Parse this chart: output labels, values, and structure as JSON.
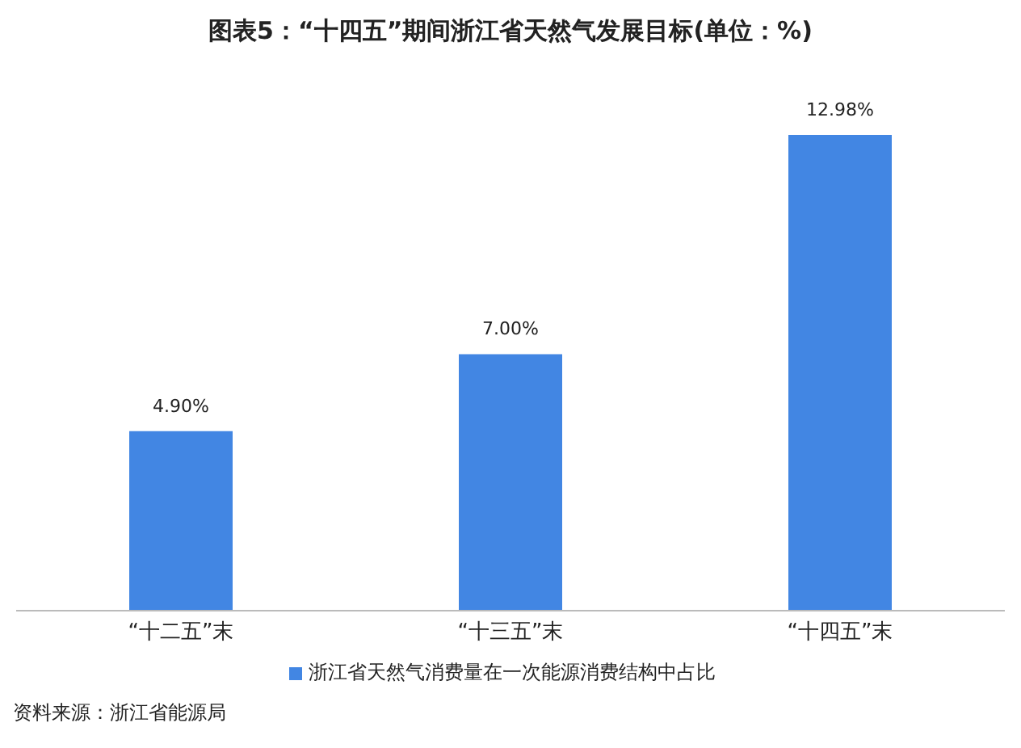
{
  "chart_data": {
    "type": "bar",
    "title": "图表5：“十四五”期间浙江省天然气发展目标(单位：%)",
    "categories": [
      "“十二五”末",
      "“十三五”末",
      "“十四五”末"
    ],
    "series": [
      {
        "name": "浙江省天然气消费量在一次能源消费结构中占比",
        "color": "#4286e3",
        "values": [
          4.9,
          7.0,
          12.98
        ],
        "value_labels": [
          "4.90%",
          "7.00%",
          "12.98%"
        ]
      }
    ],
    "legend": "bottom",
    "grid": false,
    "annotations": [
      "资料来源：浙江省能源局"
    ]
  }
}
